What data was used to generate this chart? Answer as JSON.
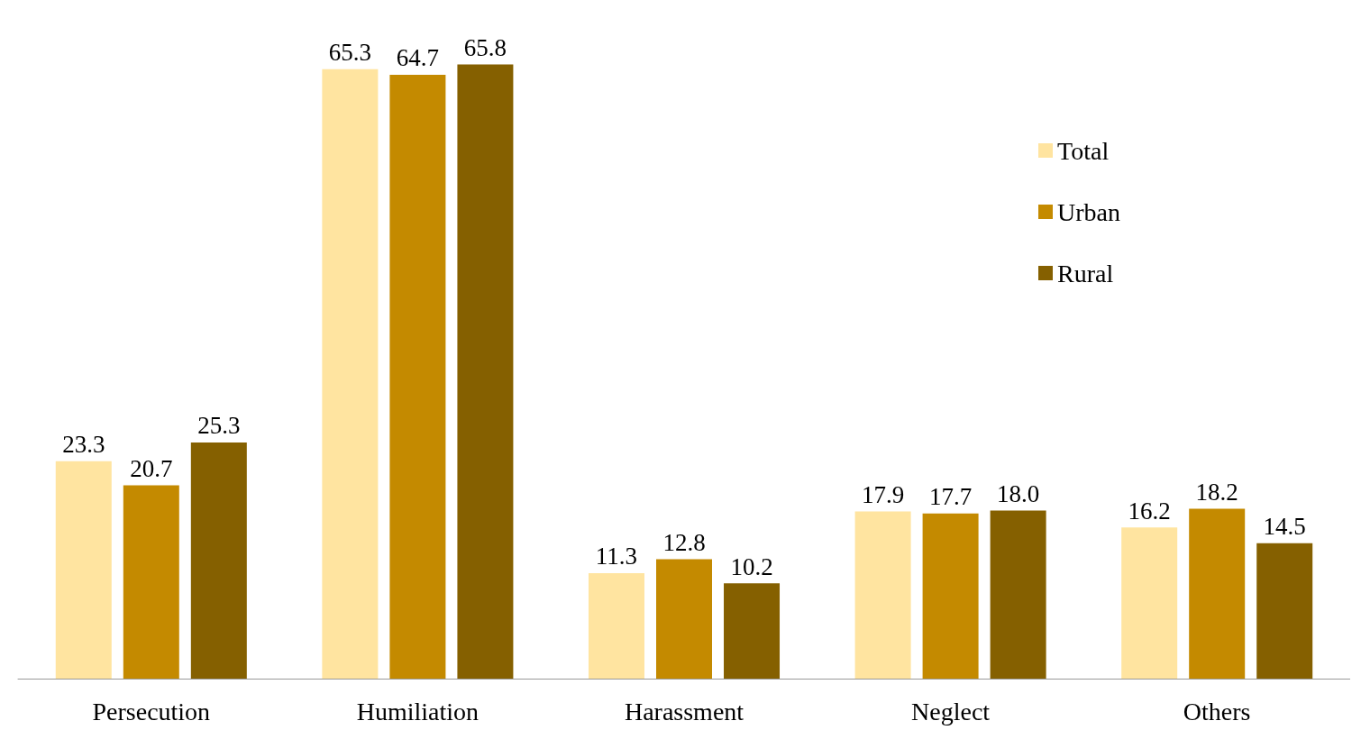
{
  "chart_data": {
    "type": "bar",
    "categories": [
      "Persecution",
      "Humiliation",
      "Harassment",
      "Neglect",
      "Others"
    ],
    "series": [
      {
        "name": "Total",
        "color": "#ffe4a0",
        "values": [
          23.3,
          65.3,
          11.3,
          17.9,
          16.2
        ],
        "value_labels": [
          "23.3",
          "65.3",
          "11.3",
          "17.9",
          "16.2"
        ]
      },
      {
        "name": "Urban",
        "color": "#c48a00",
        "values": [
          20.7,
          64.7,
          12.8,
          17.7,
          18.2
        ],
        "value_labels": [
          "20.7",
          "64.7",
          "12.8",
          "17.7",
          "18.2"
        ]
      },
      {
        "name": "Rural",
        "color": "#856000",
        "values": [
          25.3,
          65.8,
          10.2,
          18.0,
          14.5
        ],
        "value_labels": [
          "25.3",
          "65.8",
          "10.2",
          "18.0",
          "14.5"
        ]
      }
    ],
    "legend": "top right"
  }
}
